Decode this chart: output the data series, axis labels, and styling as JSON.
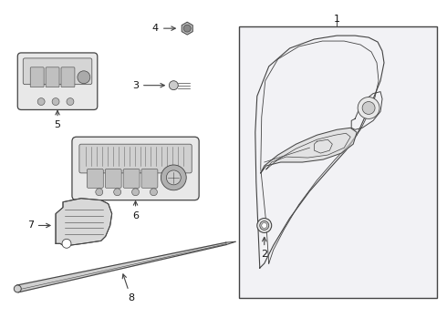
{
  "bg_color": "#ffffff",
  "fig_width": 4.9,
  "fig_height": 3.6,
  "dpi": 100,
  "line_color": "#444444",
  "text_color": "#111111",
  "light_fill": "#e8e8e8",
  "box_bg": "#f2f2f5"
}
